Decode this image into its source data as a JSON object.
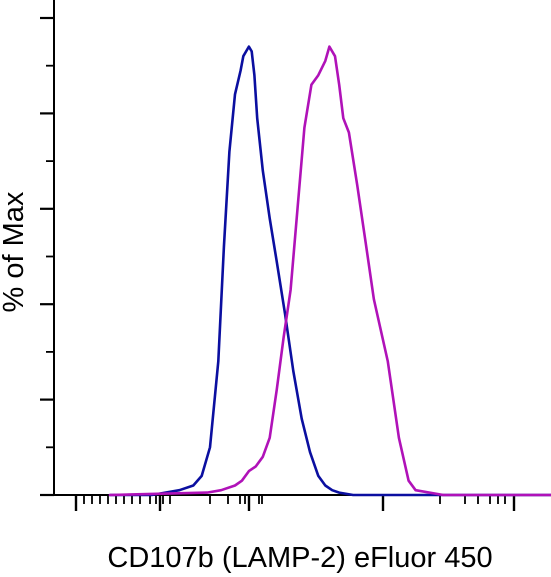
{
  "chart_data": {
    "type": "line",
    "title": "",
    "xlabel": "CD107b (LAMP-2) eFluor 450",
    "ylabel": "% of Max",
    "x_scale": "log",
    "grid": false,
    "legend": "none",
    "series": [
      {
        "color": "#0b0fa0",
        "x": [
          0.0,
          0.3,
          0.5,
          0.6,
          0.66,
          0.72,
          0.78,
          0.82,
          0.86,
          0.9,
          0.94,
          0.96,
          0.98,
          1.0,
          1.02,
          1.04,
          1.06,
          1.1,
          1.15,
          1.2,
          1.26,
          1.32,
          1.38,
          1.44,
          1.5,
          1.55,
          1.6,
          1.65,
          1.75,
          2.0,
          3.6
        ],
        "y": [
          0.0,
          0.0,
          1,
          2,
          4,
          10,
          28,
          52,
          72,
          84,
          89,
          92,
          93,
          94,
          93,
          88,
          79,
          68,
          58,
          49,
          38,
          26,
          16,
          9,
          4,
          2,
          1,
          0.5,
          0,
          0,
          0
        ]
      },
      {
        "color": "#b012b8",
        "x": [
          0.0,
          0.7,
          0.8,
          0.9,
          0.95,
          1.0,
          1.05,
          1.1,
          1.15,
          1.2,
          1.25,
          1.3,
          1.35,
          1.4,
          1.45,
          1.5,
          1.55,
          1.58,
          1.62,
          1.65,
          1.68,
          1.72,
          1.78,
          1.84,
          1.9,
          2.0,
          2.08,
          2.15,
          2.2,
          2.4,
          3.6
        ],
        "y": [
          0.0,
          0.5,
          1,
          2,
          3,
          5,
          6,
          8,
          12,
          22,
          33,
          43,
          60,
          77,
          86,
          88,
          91,
          94,
          92,
          86,
          79,
          76,
          65,
          53,
          41,
          28,
          12,
          3,
          1,
          0,
          0
        ]
      }
    ]
  }
}
